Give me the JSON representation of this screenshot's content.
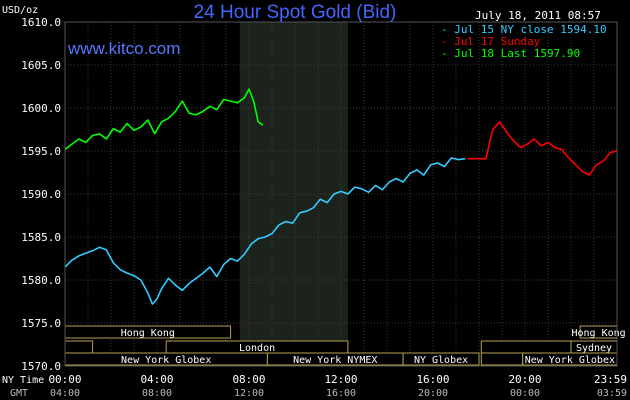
{
  "chart_data": {
    "type": "line",
    "title": "24 Hour Spot Gold (Bid)",
    "timestamp": "July 18, 2011 08:57",
    "brand": "www.kitco.com",
    "y_unit_label": "USD/oz",
    "ylim": [
      1570.0,
      1610.0
    ],
    "y_ticks": [
      "1570.0",
      "1575.0",
      "1580.0",
      "1585.0",
      "1590.0",
      "1595.0",
      "1600.0",
      "1605.0",
      "1610.0"
    ],
    "xlim": [
      0,
      24
    ],
    "x_ticks_ny": [
      "00:00",
      "04:00",
      "08:00",
      "12:00",
      "16:00",
      "20:00",
      "23:59"
    ],
    "x_ticks_gmt": [
      "04:00",
      "08:00",
      "12:00",
      "16:00",
      "20:00",
      "00:00",
      "03:59"
    ],
    "x_label_ny": "NY Time",
    "x_label_gmt": "GMT",
    "highlight_range": [
      7.6,
      12.3
    ],
    "grid": true,
    "legend_position": "top-right",
    "series": [
      {
        "name": "Jul 15 NY close 1594.10",
        "legend_label": "- Jul 15 NY close 1594.10",
        "color": "#33ccff",
        "x": [
          0.0,
          0.3,
          0.6,
          0.9,
          1.2,
          1.5,
          1.8,
          2.1,
          2.4,
          2.7,
          3.0,
          3.3,
          3.6,
          3.8,
          4.0,
          4.2,
          4.5,
          4.8,
          5.1,
          5.4,
          5.7,
          6.0,
          6.3,
          6.6,
          6.9,
          7.2,
          7.5,
          7.8,
          8.1,
          8.4,
          8.7,
          9.0,
          9.3,
          9.6,
          9.9,
          10.2,
          10.5,
          10.8,
          11.1,
          11.4,
          11.7,
          12.0,
          12.3,
          12.6,
          12.9,
          13.2,
          13.5,
          13.8,
          14.1,
          14.4,
          14.7,
          15.0,
          15.3,
          15.6,
          15.9,
          16.2,
          16.5,
          16.8,
          17.1,
          17.4
        ],
        "values": [
          1581.5,
          1582.3,
          1582.8,
          1583.1,
          1583.4,
          1583.8,
          1583.5,
          1582.0,
          1581.2,
          1580.8,
          1580.5,
          1580.0,
          1578.5,
          1577.2,
          1577.8,
          1579.0,
          1580.2,
          1579.4,
          1578.8,
          1579.6,
          1580.2,
          1580.8,
          1581.5,
          1580.4,
          1581.8,
          1582.5,
          1582.2,
          1583.0,
          1584.2,
          1584.8,
          1585.0,
          1585.4,
          1586.4,
          1586.8,
          1586.6,
          1587.8,
          1588.0,
          1588.4,
          1589.4,
          1589.0,
          1590.0,
          1590.3,
          1590.0,
          1590.8,
          1590.6,
          1590.2,
          1591.0,
          1590.5,
          1591.4,
          1591.8,
          1591.4,
          1592.4,
          1592.8,
          1592.2,
          1593.4,
          1593.6,
          1593.2,
          1594.2,
          1594.0,
          1594.1
        ]
      },
      {
        "name": "Jul 17 Sunday",
        "legend_label": "- Jul 17 Sunday",
        "color": "#ff0000",
        "x": [
          17.5,
          18.3,
          18.6,
          18.9,
          19.2,
          19.5,
          19.8,
          20.1,
          20.4,
          20.7,
          21.0,
          21.3,
          21.6,
          21.9,
          22.2,
          22.5,
          22.8,
          23.1,
          23.4,
          23.7,
          23.99
        ],
        "values": [
          1594.1,
          1594.1,
          1597.5,
          1598.4,
          1597.2,
          1596.2,
          1595.4,
          1595.8,
          1596.4,
          1595.6,
          1596.0,
          1595.4,
          1595.2,
          1594.2,
          1593.4,
          1592.6,
          1592.2,
          1593.4,
          1593.8,
          1594.8,
          1595.0
        ]
      },
      {
        "name": "Jul 18 Last 1597.90",
        "legend_label": "- Jul 18 Last 1597.90",
        "color": "#00ff00",
        "x": [
          0.0,
          0.3,
          0.6,
          0.9,
          1.2,
          1.5,
          1.8,
          2.1,
          2.4,
          2.7,
          3.0,
          3.3,
          3.6,
          3.9,
          4.2,
          4.5,
          4.8,
          5.1,
          5.4,
          5.7,
          6.0,
          6.3,
          6.6,
          6.9,
          7.2,
          7.5,
          7.8,
          8.0,
          8.2,
          8.4,
          8.6
        ],
        "values": [
          1595.2,
          1595.8,
          1596.4,
          1596.0,
          1596.8,
          1597.0,
          1596.4,
          1597.6,
          1597.2,
          1598.2,
          1597.4,
          1597.8,
          1598.6,
          1597.0,
          1598.4,
          1598.8,
          1599.6,
          1600.8,
          1599.4,
          1599.2,
          1599.6,
          1600.2,
          1599.8,
          1601.0,
          1600.8,
          1600.6,
          1601.2,
          1602.2,
          1600.8,
          1598.4,
          1598.0
        ]
      }
    ],
    "sessions": [
      {
        "label": "Hong Kong",
        "row": 0,
        "start": 0.0,
        "end": 7.2
      },
      {
        "label": "Hong Kong",
        "row": 0,
        "start": 22.4,
        "end": 24.0
      },
      {
        "label": "London",
        "row": 1,
        "start": 4.4,
        "end": 12.3
      },
      {
        "label": "Sydney",
        "row": 1,
        "start": 22.0,
        "end": 24.0
      },
      {
        "label": "New York Globex",
        "row": 2,
        "start": 0.0,
        "end": 8.8
      },
      {
        "label": "New York NYMEX",
        "row": 2,
        "start": 8.8,
        "end": 14.7
      },
      {
        "label": "NY Globex",
        "row": 2,
        "start": 14.7,
        "end": 18.0
      },
      {
        "label": "New York Globex",
        "row": 2,
        "start": 19.9,
        "end": 24.0
      }
    ],
    "session_boxes_empty": [
      {
        "row": 1,
        "start": 0.0,
        "end": 1.2
      },
      {
        "row": 1,
        "start": 18.1,
        "end": 22.0
      },
      {
        "row": 2,
        "start": 18.1,
        "end": 19.9
      }
    ]
  }
}
